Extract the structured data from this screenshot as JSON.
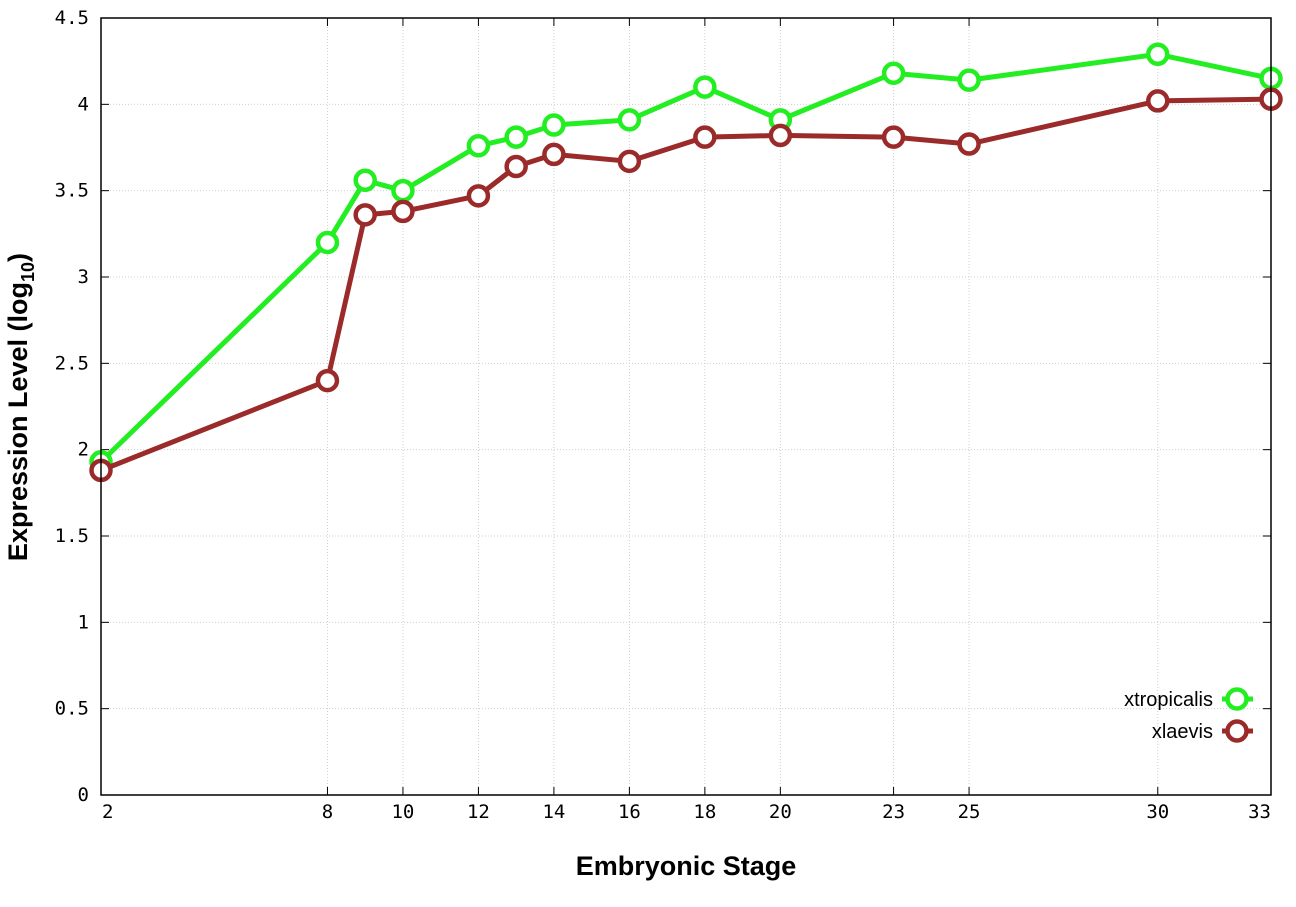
{
  "chart_data": {
    "type": "line",
    "xlabel": "Embryonic Stage",
    "ylabel": "Expression Level (log",
    "ylabel_subscript": "10",
    "ylabel_close": ")",
    "x_ticks": [
      2,
      8,
      10,
      12,
      14,
      16,
      18,
      20,
      23,
      25,
      30,
      33
    ],
    "y_ticks": [
      "0",
      "0.5",
      "1",
      "1.5",
      "2",
      "2.5",
      "3",
      "3.5",
      "4",
      "4.5"
    ],
    "xlim": [
      2,
      33
    ],
    "ylim": [
      0,
      4.5
    ],
    "grid": true,
    "legend_position": "bottom-right",
    "series": [
      {
        "name": "xtropicalis",
        "color": "#22ee22",
        "points": [
          [
            2,
            1.93
          ],
          [
            8,
            3.2
          ],
          [
            9,
            3.56
          ],
          [
            10,
            3.5
          ],
          [
            12,
            3.76
          ],
          [
            13,
            3.81
          ],
          [
            14,
            3.88
          ],
          [
            16,
            3.91
          ],
          [
            18,
            4.1
          ],
          [
            20,
            3.91
          ],
          [
            23,
            4.18
          ],
          [
            25,
            4.14
          ],
          [
            30,
            4.29
          ],
          [
            33,
            4.15
          ]
        ]
      },
      {
        "name": "xlaevis",
        "color": "#9b2a2a",
        "points": [
          [
            2,
            1.88
          ],
          [
            8,
            2.4
          ],
          [
            9,
            3.36
          ],
          [
            10,
            3.38
          ],
          [
            12,
            3.47
          ],
          [
            13,
            3.64
          ],
          [
            14,
            3.71
          ],
          [
            16,
            3.67
          ],
          [
            18,
            3.81
          ],
          [
            20,
            3.82
          ],
          [
            23,
            3.81
          ],
          [
            25,
            3.77
          ],
          [
            30,
            4.02
          ],
          [
            33,
            4.03
          ]
        ]
      }
    ]
  }
}
